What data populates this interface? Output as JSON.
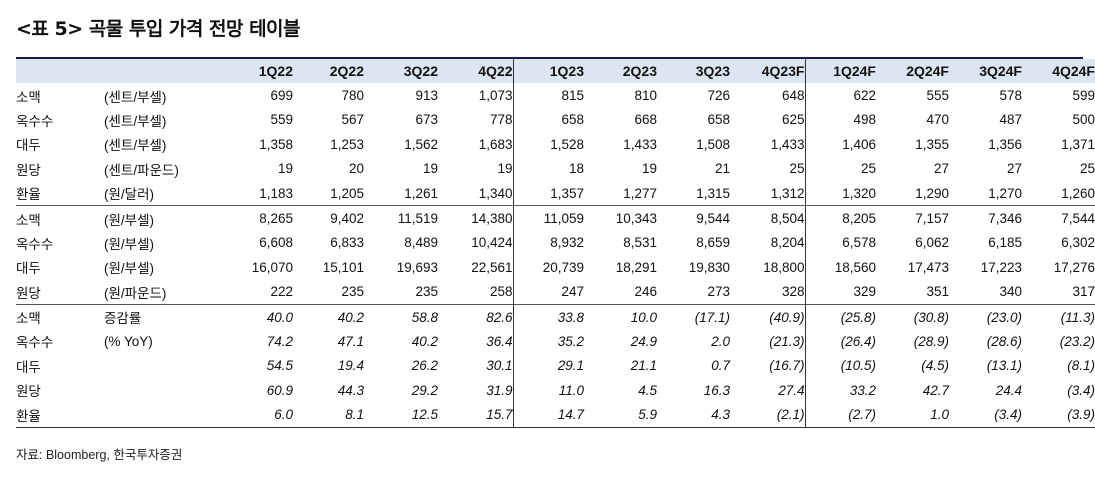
{
  "title": "<표 5> 곡물 투입 가격 전망 테이블",
  "columns": [
    "1Q22",
    "2Q22",
    "3Q22",
    "4Q22",
    "1Q23",
    "2Q23",
    "3Q23",
    "4Q23F",
    "1Q24F",
    "2Q24F",
    "3Q24F",
    "4Q24F"
  ],
  "sections": [
    {
      "rows": [
        {
          "name": "소맥",
          "unit": "(센트/부셀)",
          "values": [
            "699",
            "780",
            "913",
            "1,073",
            "815",
            "810",
            "726",
            "648",
            "622",
            "555",
            "578",
            "599"
          ]
        },
        {
          "name": "옥수수",
          "unit": "(센트/부셀)",
          "values": [
            "559",
            "567",
            "673",
            "778",
            "658",
            "668",
            "658",
            "625",
            "498",
            "470",
            "487",
            "500"
          ]
        },
        {
          "name": "대두",
          "unit": "(센트/부셀)",
          "values": [
            "1,358",
            "1,253",
            "1,562",
            "1,683",
            "1,528",
            "1,433",
            "1,508",
            "1,433",
            "1,406",
            "1,355",
            "1,356",
            "1,371"
          ]
        },
        {
          "name": "원당",
          "unit": "(센트/파운드)",
          "values": [
            "19",
            "20",
            "19",
            "19",
            "18",
            "19",
            "21",
            "25",
            "25",
            "27",
            "27",
            "25"
          ]
        },
        {
          "name": "환율",
          "unit": "(원/달러)",
          "values": [
            "1,183",
            "1,205",
            "1,261",
            "1,340",
            "1,357",
            "1,277",
            "1,315",
            "1,312",
            "1,320",
            "1,290",
            "1,270",
            "1,260"
          ]
        }
      ]
    },
    {
      "rows": [
        {
          "name": "소맥",
          "unit": "(원/부셀)",
          "values": [
            "8,265",
            "9,402",
            "11,519",
            "14,380",
            "11,059",
            "10,343",
            "9,544",
            "8,504",
            "8,205",
            "7,157",
            "7,346",
            "7,544"
          ]
        },
        {
          "name": "옥수수",
          "unit": "(원/부셀)",
          "values": [
            "6,608",
            "6,833",
            "8,489",
            "10,424",
            "8,932",
            "8,531",
            "8,659",
            "8,204",
            "6,578",
            "6,062",
            "6,185",
            "6,302"
          ]
        },
        {
          "name": "대두",
          "unit": "(원/부셀)",
          "values": [
            "16,070",
            "15,101",
            "19,693",
            "22,561",
            "20,739",
            "18,291",
            "19,830",
            "18,800",
            "18,560",
            "17,473",
            "17,223",
            "17,276"
          ]
        },
        {
          "name": "원당",
          "unit": "(원/파운드)",
          "values": [
            "222",
            "235",
            "235",
            "258",
            "247",
            "246",
            "273",
            "328",
            "329",
            "351",
            "340",
            "317"
          ]
        }
      ]
    },
    {
      "italic": true,
      "rows": [
        {
          "name": "소맥",
          "unit": "증감률",
          "values": [
            "40.0",
            "40.2",
            "58.8",
            "82.6",
            "33.8",
            "10.0",
            "(17.1)",
            "(40.9)",
            "(25.8)",
            "(30.8)",
            "(23.0)",
            "(11.3)"
          ]
        },
        {
          "name": "옥수수",
          "unit": "(% YoY)",
          "values": [
            "74.2",
            "47.1",
            "40.2",
            "36.4",
            "35.2",
            "24.9",
            "2.0",
            "(21.3)",
            "(26.4)",
            "(28.9)",
            "(28.6)",
            "(23.2)"
          ]
        },
        {
          "name": "대두",
          "unit": "",
          "values": [
            "54.5",
            "19.4",
            "26.2",
            "30.1",
            "29.1",
            "21.1",
            "0.7",
            "(16.7)",
            "(10.5)",
            "(4.5)",
            "(13.1)",
            "(8.1)"
          ]
        },
        {
          "name": "원당",
          "unit": "",
          "values": [
            "60.9",
            "44.3",
            "29.2",
            "31.9",
            "11.0",
            "4.5",
            "16.3",
            "27.4",
            "33.2",
            "42.7",
            "24.4",
            "(3.4)"
          ]
        },
        {
          "name": "환율",
          "unit": "",
          "values": [
            "6.0",
            "8.1",
            "12.5",
            "15.7",
            "14.7",
            "5.9",
            "4.3",
            "(2.1)",
            "(2.7)",
            "1.0",
            "(3.4)",
            "(3.9)"
          ]
        }
      ]
    }
  ],
  "source": "자료: Bloomberg, 한국투자증권"
}
